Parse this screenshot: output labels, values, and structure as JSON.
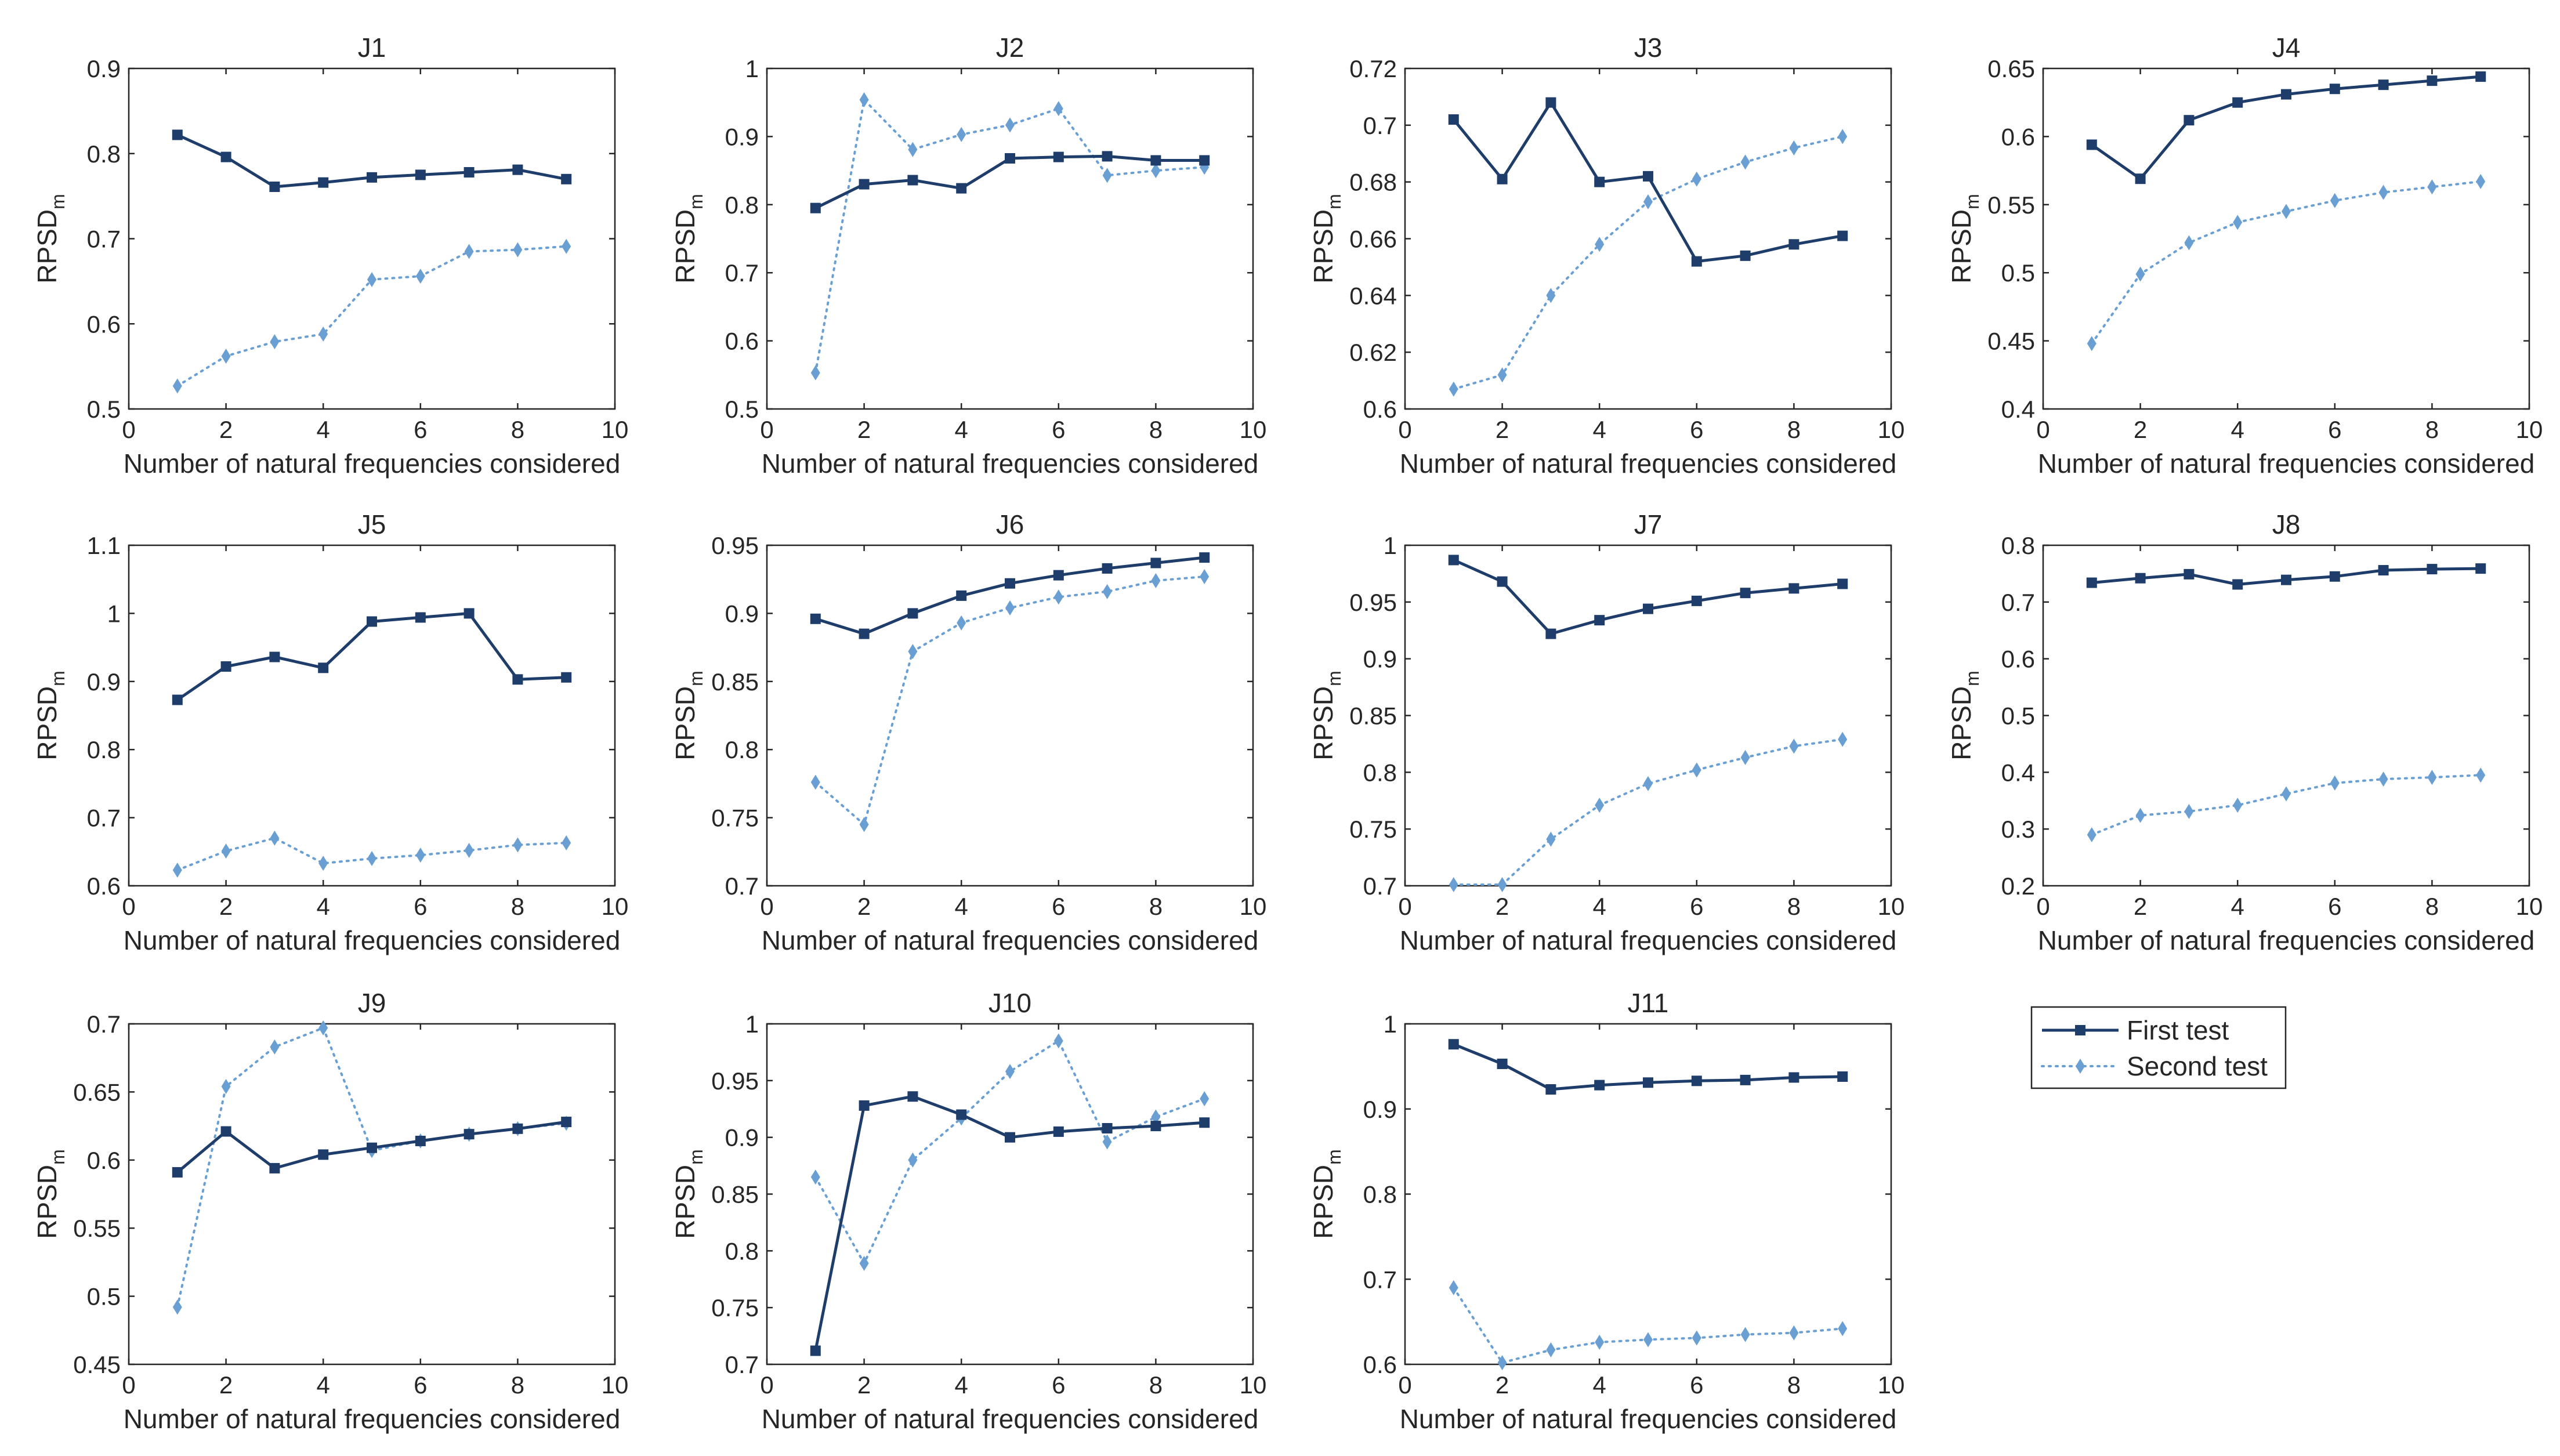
{
  "figure": {
    "legend": {
      "series": [
        {
          "name": "First test",
          "color": "#1f3d6b",
          "style": "solid",
          "marker": "square"
        },
        {
          "name": "Second test",
          "color": "#6a9fd4",
          "style": "dotted",
          "marker": "diamond"
        }
      ],
      "placement": "lower-right"
    }
  },
  "chart_data": [
    {
      "type": "line",
      "title": "J1",
      "xlabel": "Number of natural frequencies considered",
      "ylabel": "RPSD",
      "ylabel_sub": "m",
      "xlim": [
        0,
        10
      ],
      "xticks": [
        "0",
        "2",
        "4",
        "6",
        "8",
        "10"
      ],
      "ylim": [
        0.5,
        0.9
      ],
      "yticks": [
        "0.5",
        "0.6",
        "0.7",
        "0.8",
        "0.9"
      ],
      "x": [
        1,
        2,
        3,
        4,
        5,
        6,
        7,
        8,
        9
      ],
      "series": [
        {
          "name": "First test",
          "values": [
            0.822,
            0.796,
            0.761,
            0.766,
            0.772,
            0.775,
            0.778,
            0.781,
            0.77
          ]
        },
        {
          "name": "Second test",
          "values": [
            0.527,
            0.562,
            0.579,
            0.588,
            0.652,
            0.656,
            0.685,
            0.687,
            0.691
          ]
        }
      ]
    },
    {
      "type": "line",
      "title": "J2",
      "xlabel": "Number of natural frequencies considered",
      "ylabel": "RPSD",
      "ylabel_sub": "m",
      "xlim": [
        0,
        10
      ],
      "xticks": [
        "0",
        "2",
        "4",
        "6",
        "8",
        "10"
      ],
      "ylim": [
        0.5,
        1
      ],
      "yticks": [
        "0.5",
        "0.6",
        "0.7",
        "0.8",
        "0.9",
        "1"
      ],
      "x": [
        1,
        2,
        3,
        4,
        5,
        6,
        7,
        8,
        9
      ],
      "series": [
        {
          "name": "First test",
          "values": [
            0.795,
            0.83,
            0.836,
            0.824,
            0.868,
            0.87,
            0.871,
            0.865,
            0.865
          ]
        },
        {
          "name": "Second test",
          "values": [
            0.553,
            0.954,
            0.881,
            0.903,
            0.917,
            0.941,
            0.843,
            0.85,
            0.855
          ]
        }
      ]
    },
    {
      "type": "line",
      "title": "J3",
      "xlabel": "Number of natural frequencies considered",
      "ylabel": "RPSD",
      "ylabel_sub": "m",
      "xlim": [
        0,
        10
      ],
      "xticks": [
        "0",
        "2",
        "4",
        "6",
        "8",
        "10"
      ],
      "ylim": [
        0.6,
        0.72
      ],
      "yticks": [
        "0.6",
        "0.62",
        "0.64",
        "0.66",
        "0.68",
        "0.7",
        "0.72"
      ],
      "x": [
        1,
        2,
        3,
        4,
        5,
        6,
        7,
        8,
        9
      ],
      "series": [
        {
          "name": "First test",
          "values": [
            0.702,
            0.681,
            0.708,
            0.68,
            0.682,
            0.652,
            0.654,
            0.658,
            0.661
          ]
        },
        {
          "name": "Second test",
          "values": [
            0.607,
            0.612,
            0.64,
            0.658,
            0.673,
            0.681,
            0.687,
            0.692,
            0.696
          ]
        }
      ]
    },
    {
      "type": "line",
      "title": "J4",
      "xlabel": "Number of natural frequencies considered",
      "ylabel": "RPSD",
      "ylabel_sub": "m",
      "xlim": [
        0,
        10
      ],
      "xticks": [
        "0",
        "2",
        "4",
        "6",
        "8",
        "10"
      ],
      "ylim": [
        0.4,
        0.65
      ],
      "yticks": [
        "0.4",
        "0.45",
        "0.5",
        "0.55",
        "0.6",
        "0.65"
      ],
      "x": [
        1,
        2,
        3,
        4,
        5,
        6,
        7,
        8,
        9
      ],
      "series": [
        {
          "name": "First test",
          "values": [
            0.594,
            0.569,
            0.612,
            0.625,
            0.631,
            0.635,
            0.638,
            0.641,
            0.644
          ]
        },
        {
          "name": "Second test",
          "values": [
            0.448,
            0.499,
            0.522,
            0.537,
            0.545,
            0.553,
            0.559,
            0.563,
            0.567
          ]
        }
      ]
    },
    {
      "type": "line",
      "title": "J5",
      "xlabel": "Number of natural frequencies considered",
      "ylabel": "RPSD",
      "ylabel_sub": "m",
      "xlim": [
        0,
        10
      ],
      "xticks": [
        "0",
        "2",
        "4",
        "6",
        "8",
        "10"
      ],
      "ylim": [
        0.6,
        1.1
      ],
      "yticks": [
        "0.6",
        "0.7",
        "0.8",
        "0.9",
        "1",
        "1.1"
      ],
      "x": [
        1,
        2,
        3,
        4,
        5,
        6,
        7,
        8,
        9
      ],
      "series": [
        {
          "name": "First test",
          "values": [
            0.873,
            0.922,
            0.936,
            0.92,
            0.988,
            0.994,
            1.0,
            0.903,
            0.906
          ]
        },
        {
          "name": "Second test",
          "values": [
            0.623,
            0.651,
            0.67,
            0.633,
            0.64,
            0.645,
            0.652,
            0.66,
            0.663
          ]
        }
      ]
    },
    {
      "type": "line",
      "title": "J6",
      "xlabel": "Number of natural frequencies considered",
      "ylabel": "RPSD",
      "ylabel_sub": "m",
      "xlim": [
        0,
        10
      ],
      "xticks": [
        "0",
        "2",
        "4",
        "6",
        "8",
        "10"
      ],
      "ylim": [
        0.7,
        0.95
      ],
      "yticks": [
        "0.7",
        "0.75",
        "0.8",
        "0.85",
        "0.9",
        "0.95"
      ],
      "x": [
        1,
        2,
        3,
        4,
        5,
        6,
        7,
        8,
        9
      ],
      "series": [
        {
          "name": "First test",
          "values": [
            0.896,
            0.885,
            0.9,
            0.913,
            0.922,
            0.928,
            0.933,
            0.937,
            0.941
          ]
        },
        {
          "name": "Second test",
          "values": [
            0.776,
            0.745,
            0.872,
            0.893,
            0.904,
            0.912,
            0.916,
            0.924,
            0.927
          ]
        }
      ]
    },
    {
      "type": "line",
      "title": "J7",
      "xlabel": "Number of natural frequencies considered",
      "ylabel": "RPSD",
      "ylabel_sub": "m",
      "xlim": [
        0,
        10
      ],
      "xticks": [
        "0",
        "2",
        "4",
        "6",
        "8",
        "10"
      ],
      "ylim": [
        0.7,
        1
      ],
      "yticks": [
        "0.7",
        "0.75",
        "0.8",
        "0.85",
        "0.9",
        "0.95",
        "1"
      ],
      "x": [
        1,
        2,
        3,
        4,
        5,
        6,
        7,
        8,
        9
      ],
      "series": [
        {
          "name": "First test",
          "values": [
            0.987,
            0.968,
            0.922,
            0.934,
            0.944,
            0.951,
            0.958,
            0.962,
            0.966
          ]
        },
        {
          "name": "Second test",
          "values": [
            0.701,
            0.701,
            0.741,
            0.771,
            0.79,
            0.802,
            0.813,
            0.823,
            0.829
          ]
        }
      ]
    },
    {
      "type": "line",
      "title": "J8",
      "xlabel": "Number of natural frequencies considered",
      "ylabel": "RPSD",
      "ylabel_sub": "m",
      "xlim": [
        0,
        10
      ],
      "xticks": [
        "0",
        "2",
        "4",
        "6",
        "8",
        "10"
      ],
      "ylim": [
        0.2,
        0.8
      ],
      "yticks": [
        "0.2",
        "0.3",
        "0.4",
        "0.5",
        "0.6",
        "0.7",
        "0.8"
      ],
      "x": [
        1,
        2,
        3,
        4,
        5,
        6,
        7,
        8,
        9
      ],
      "series": [
        {
          "name": "First test",
          "values": [
            0.734,
            0.742,
            0.749,
            0.731,
            0.739,
            0.745,
            0.756,
            0.758,
            0.759
          ]
        },
        {
          "name": "Second test",
          "values": [
            0.29,
            0.324,
            0.331,
            0.342,
            0.362,
            0.381,
            0.388,
            0.391,
            0.395
          ]
        }
      ]
    },
    {
      "type": "line",
      "title": "J9",
      "xlabel": "Number of natural frequencies considered",
      "ylabel": "RPSD",
      "ylabel_sub": "m",
      "xlim": [
        0,
        10
      ],
      "xticks": [
        "0",
        "2",
        "4",
        "6",
        "8",
        "10"
      ],
      "ylim": [
        0.45,
        0.7
      ],
      "yticks": [
        "0.45",
        "0.5",
        "0.55",
        "0.6",
        "0.65",
        "0.7"
      ],
      "x": [
        1,
        2,
        3,
        4,
        5,
        6,
        7,
        8,
        9
      ],
      "series": [
        {
          "name": "First test",
          "values": [
            0.591,
            0.621,
            0.594,
            0.604,
            0.609,
            0.614,
            0.619,
            0.623,
            0.628
          ]
        },
        {
          "name": "Second test",
          "values": [
            0.492,
            0.654,
            0.683,
            0.697,
            0.607,
            0.614,
            0.619,
            0.623,
            0.627
          ]
        }
      ]
    },
    {
      "type": "line",
      "title": "J10",
      "xlabel": "Number of natural frequencies considered",
      "ylabel": "RPSD",
      "ylabel_sub": "m",
      "xlim": [
        0,
        10
      ],
      "xticks": [
        "0",
        "2",
        "4",
        "6",
        "8",
        "10"
      ],
      "ylim": [
        0.7,
        1
      ],
      "yticks": [
        "0.7",
        "0.75",
        "0.8",
        "0.85",
        "0.9",
        "0.95",
        "1"
      ],
      "x": [
        1,
        2,
        3,
        4,
        5,
        6,
        7,
        8,
        9
      ],
      "series": [
        {
          "name": "First test",
          "values": [
            0.712,
            0.928,
            0.936,
            0.92,
            0.9,
            0.905,
            0.908,
            0.91,
            0.913
          ]
        },
        {
          "name": "Second test",
          "values": [
            0.865,
            0.789,
            0.88,
            0.917,
            0.958,
            0.985,
            0.896,
            0.918,
            0.934
          ]
        }
      ]
    },
    {
      "type": "line",
      "title": "J11",
      "xlabel": "Number of natural frequencies considered",
      "ylabel": "RPSD",
      "ylabel_sub": "m",
      "xlim": [
        0,
        10
      ],
      "xticks": [
        "0",
        "2",
        "4",
        "6",
        "8",
        "10"
      ],
      "ylim": [
        0.6,
        1
      ],
      "yticks": [
        "0.6",
        "0.7",
        "0.8",
        "0.9",
        "1"
      ],
      "x": [
        1,
        2,
        3,
        4,
        5,
        6,
        7,
        8,
        9
      ],
      "series": [
        {
          "name": "First test",
          "values": [
            0.976,
            0.953,
            0.923,
            0.928,
            0.931,
            0.933,
            0.934,
            0.937,
            0.938
          ]
        },
        {
          "name": "Second test",
          "values": [
            0.69,
            0.602,
            0.617,
            0.626,
            0.629,
            0.631,
            0.635,
            0.637,
            0.642
          ]
        }
      ]
    }
  ]
}
